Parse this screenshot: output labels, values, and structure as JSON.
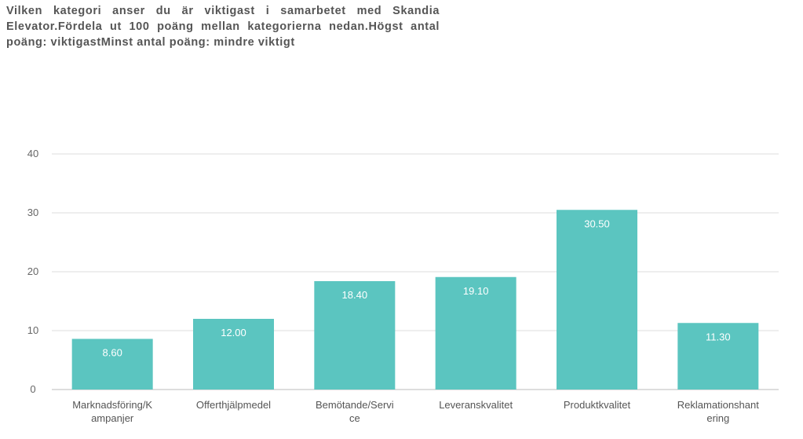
{
  "chart_data": {
    "type": "bar",
    "title": "Vilken kategori anser du är viktigast i samarbetet med Skandia Elevator.Fördela ut 100 poäng mellan kategorierna nedan.Högst antal poäng: viktigastMinst antal poäng: mindre viktigt",
    "categories": [
      [
        "Marknadsföring/K",
        "ampanjer"
      ],
      [
        "Offerthjälpmedel"
      ],
      [
        "Bemötande/Servi",
        "ce"
      ],
      [
        "Leveranskvalitet"
      ],
      [
        "Produktkvalitet"
      ],
      [
        "Reklamationshant",
        "ering"
      ]
    ],
    "values": [
      8.6,
      12.0,
      18.4,
      19.1,
      30.5,
      11.3
    ],
    "value_labels": [
      "8.60",
      "12.00",
      "18.40",
      "19.10",
      "30.50",
      "11.30"
    ],
    "ylim": [
      0,
      40
    ],
    "yticks": [
      0,
      10,
      20,
      30,
      40
    ],
    "ytick_labels": [
      "0",
      "10",
      "20",
      "30",
      "40"
    ],
    "grid": true,
    "xlabel": "",
    "ylabel": "",
    "colors": {
      "bar": "#5BC5C0",
      "grid": "#DDDDDD",
      "baseline": "#BBBBBB"
    }
  }
}
